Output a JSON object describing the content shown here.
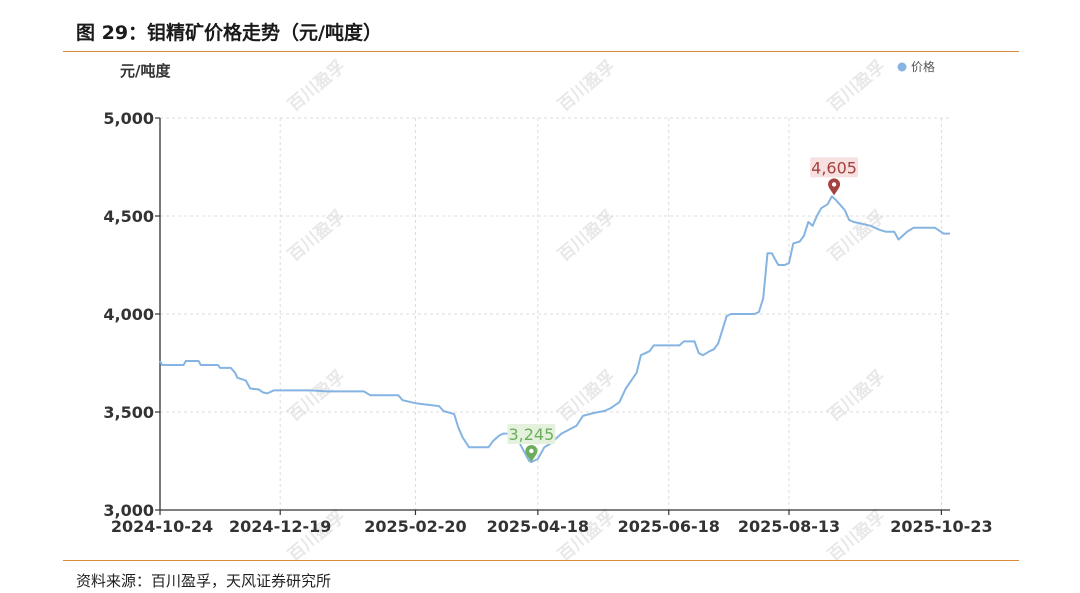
{
  "figure_title": "图 29：钼精矿价格走势（元/吨度）",
  "source_note": "资料来源：百川盈孚，天风证券研究所",
  "watermark": "百川盈孚",
  "colors": {
    "line": "#86b4e2",
    "min_marker": "#6cae5e",
    "max_marker": "#a5413f",
    "rule": "#d9893a"
  },
  "chart_data": {
    "type": "line",
    "unit_label": "元/吨度",
    "legend": [
      "价格"
    ],
    "legend_position": "top-right",
    "ylim": [
      3000,
      5000
    ],
    "yticks": [
      3000,
      3500,
      4000,
      4500,
      5000
    ],
    "ytick_labels": [
      "3,000",
      "3,500",
      "4,000",
      "4,500",
      "5,000"
    ],
    "xtick_labels": [
      "2024-10-24",
      "2024-12-19",
      "2025-02-20",
      "2025-04-18",
      "2025-06-18",
      "2025-08-13",
      "2025-10-23"
    ],
    "x_range": [
      "2024-10-24",
      "2025-10-27"
    ],
    "grid": true,
    "annotations": [
      {
        "label": "3,245",
        "x": "2025-04-15",
        "y": 3245,
        "kind": "min"
      },
      {
        "label": "4,605",
        "x": "2025-09-03",
        "y": 4605,
        "kind": "max"
      }
    ],
    "series": [
      {
        "name": "价格",
        "points": [
          [
            "2024-10-24",
            3760
          ],
          [
            "2024-10-25",
            3740
          ],
          [
            "2024-10-31",
            3740
          ],
          [
            "2024-11-04",
            3740
          ],
          [
            "2024-11-05",
            3760
          ],
          [
            "2024-11-11",
            3760
          ],
          [
            "2024-11-12",
            3740
          ],
          [
            "2024-11-20",
            3740
          ],
          [
            "2024-11-21",
            3725
          ],
          [
            "2024-11-26",
            3725
          ],
          [
            "2024-11-28",
            3700
          ],
          [
            "2024-11-29",
            3675
          ],
          [
            "2024-12-03",
            3660
          ],
          [
            "2024-12-05",
            3620
          ],
          [
            "2024-12-09",
            3615
          ],
          [
            "2024-12-11",
            3600
          ],
          [
            "2024-12-13",
            3595
          ],
          [
            "2024-12-16",
            3610
          ],
          [
            "2025-01-02",
            3610
          ],
          [
            "2025-01-10",
            3605
          ],
          [
            "2025-01-27",
            3605
          ],
          [
            "2025-01-30",
            3585
          ],
          [
            "2025-02-12",
            3585
          ],
          [
            "2025-02-14",
            3560
          ],
          [
            "2025-02-20",
            3545
          ],
          [
            "2025-03-03",
            3530
          ],
          [
            "2025-03-05",
            3505
          ],
          [
            "2025-03-10",
            3490
          ],
          [
            "2025-03-12",
            3420
          ],
          [
            "2025-03-14",
            3370
          ],
          [
            "2025-03-17",
            3320
          ],
          [
            "2025-03-26",
            3320
          ],
          [
            "2025-03-28",
            3350
          ],
          [
            "2025-03-31",
            3380
          ],
          [
            "2025-04-02",
            3390
          ],
          [
            "2025-04-08",
            3390
          ],
          [
            "2025-04-10",
            3330
          ],
          [
            "2025-04-14",
            3250
          ],
          [
            "2025-04-15",
            3245
          ],
          [
            "2025-04-16",
            3250
          ],
          [
            "2025-04-18",
            3260
          ],
          [
            "2025-04-21",
            3320
          ],
          [
            "2025-04-24",
            3340
          ],
          [
            "2025-04-29",
            3390
          ],
          [
            "2025-05-06",
            3430
          ],
          [
            "2025-05-09",
            3480
          ],
          [
            "2025-05-14",
            3495
          ],
          [
            "2025-05-19",
            3505
          ],
          [
            "2025-05-22",
            3520
          ],
          [
            "2025-05-26",
            3550
          ],
          [
            "2025-05-29",
            3620
          ],
          [
            "2025-06-03",
            3700
          ],
          [
            "2025-06-05",
            3790
          ],
          [
            "2025-06-09",
            3810
          ],
          [
            "2025-06-11",
            3840
          ],
          [
            "2025-06-16",
            3840
          ],
          [
            "2025-06-18",
            3840
          ],
          [
            "2025-06-23",
            3840
          ],
          [
            "2025-06-25",
            3860
          ],
          [
            "2025-06-30",
            3860
          ],
          [
            "2025-07-02",
            3800
          ],
          [
            "2025-07-04",
            3790
          ],
          [
            "2025-07-07",
            3810
          ],
          [
            "2025-07-09",
            3820
          ],
          [
            "2025-07-11",
            3850
          ],
          [
            "2025-07-15",
            3990
          ],
          [
            "2025-07-17",
            4000
          ],
          [
            "2025-07-25",
            4000
          ],
          [
            "2025-07-28",
            4000
          ],
          [
            "2025-07-30",
            4010
          ],
          [
            "2025-08-01",
            4080
          ],
          [
            "2025-08-03",
            4310
          ],
          [
            "2025-08-05",
            4310
          ],
          [
            "2025-08-07",
            4270
          ],
          [
            "2025-08-08",
            4250
          ],
          [
            "2025-08-11",
            4250
          ],
          [
            "2025-08-13",
            4260
          ],
          [
            "2025-08-15",
            4360
          ],
          [
            "2025-08-18",
            4370
          ],
          [
            "2025-08-20",
            4400
          ],
          [
            "2025-08-22",
            4470
          ],
          [
            "2025-08-24",
            4450
          ],
          [
            "2025-08-26",
            4500
          ],
          [
            "2025-08-28",
            4540
          ],
          [
            "2025-08-31",
            4560
          ],
          [
            "2025-09-02",
            4600
          ],
          [
            "2025-09-04",
            4580
          ],
          [
            "2025-09-08",
            4530
          ],
          [
            "2025-09-10",
            4480
          ],
          [
            "2025-09-12",
            4470
          ],
          [
            "2025-09-16",
            4460
          ],
          [
            "2025-09-20",
            4450
          ],
          [
            "2025-09-24",
            4430
          ],
          [
            "2025-09-27",
            4420
          ],
          [
            "2025-10-01",
            4420
          ],
          [
            "2025-10-03",
            4380
          ],
          [
            "2025-10-07",
            4420
          ],
          [
            "2025-10-10",
            4440
          ],
          [
            "2025-10-20",
            4440
          ],
          [
            "2025-10-24",
            4410
          ],
          [
            "2025-10-27",
            4410
          ]
        ]
      }
    ]
  }
}
